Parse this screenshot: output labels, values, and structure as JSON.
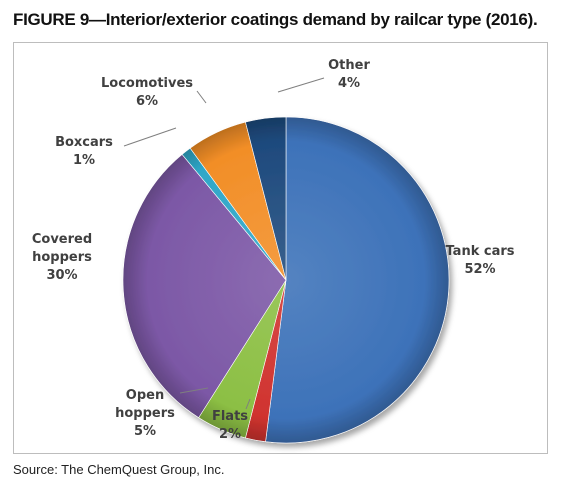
{
  "figure": {
    "title": "FIGURE 9—Interior/exterior coatings demand by railcar type (2016).",
    "source": "Source: The ChemQuest Group, Inc."
  },
  "chart_data": {
    "type": "pie",
    "title": "FIGURE 9—Interior/exterior coatings demand by railcar type (2016).",
    "slices": [
      {
        "name": "Tank cars",
        "label_lines": [
          "Tank cars"
        ],
        "value": 52,
        "value_label": "52%",
        "color": "#3d72b9"
      },
      {
        "name": "Flats",
        "label_lines": [
          "Flats"
        ],
        "value": 2,
        "value_label": "2%",
        "color": "#d0332f"
      },
      {
        "name": "Open hoppers",
        "label_lines": [
          "Open",
          "hoppers"
        ],
        "value": 5,
        "value_label": "5%",
        "color": "#8cbf44"
      },
      {
        "name": "Covered hoppers",
        "label_lines": [
          "Covered",
          "hoppers"
        ],
        "value": 30,
        "value_label": "30%",
        "color": "#7c58a6"
      },
      {
        "name": "Boxcars",
        "label_lines": [
          "Boxcars"
        ],
        "value": 1,
        "value_label": "1%",
        "color": "#2fa7c8"
      },
      {
        "name": "Locomotives",
        "label_lines": [
          "Locomotives"
        ],
        "value": 6,
        "value_label": "6%",
        "color": "#f28e27"
      },
      {
        "name": "Other",
        "label_lines": [
          "Other"
        ],
        "value": 4,
        "value_label": "4%",
        "color": "#1e4a7d"
      }
    ],
    "legend": "none",
    "style": "3d-shaded"
  }
}
